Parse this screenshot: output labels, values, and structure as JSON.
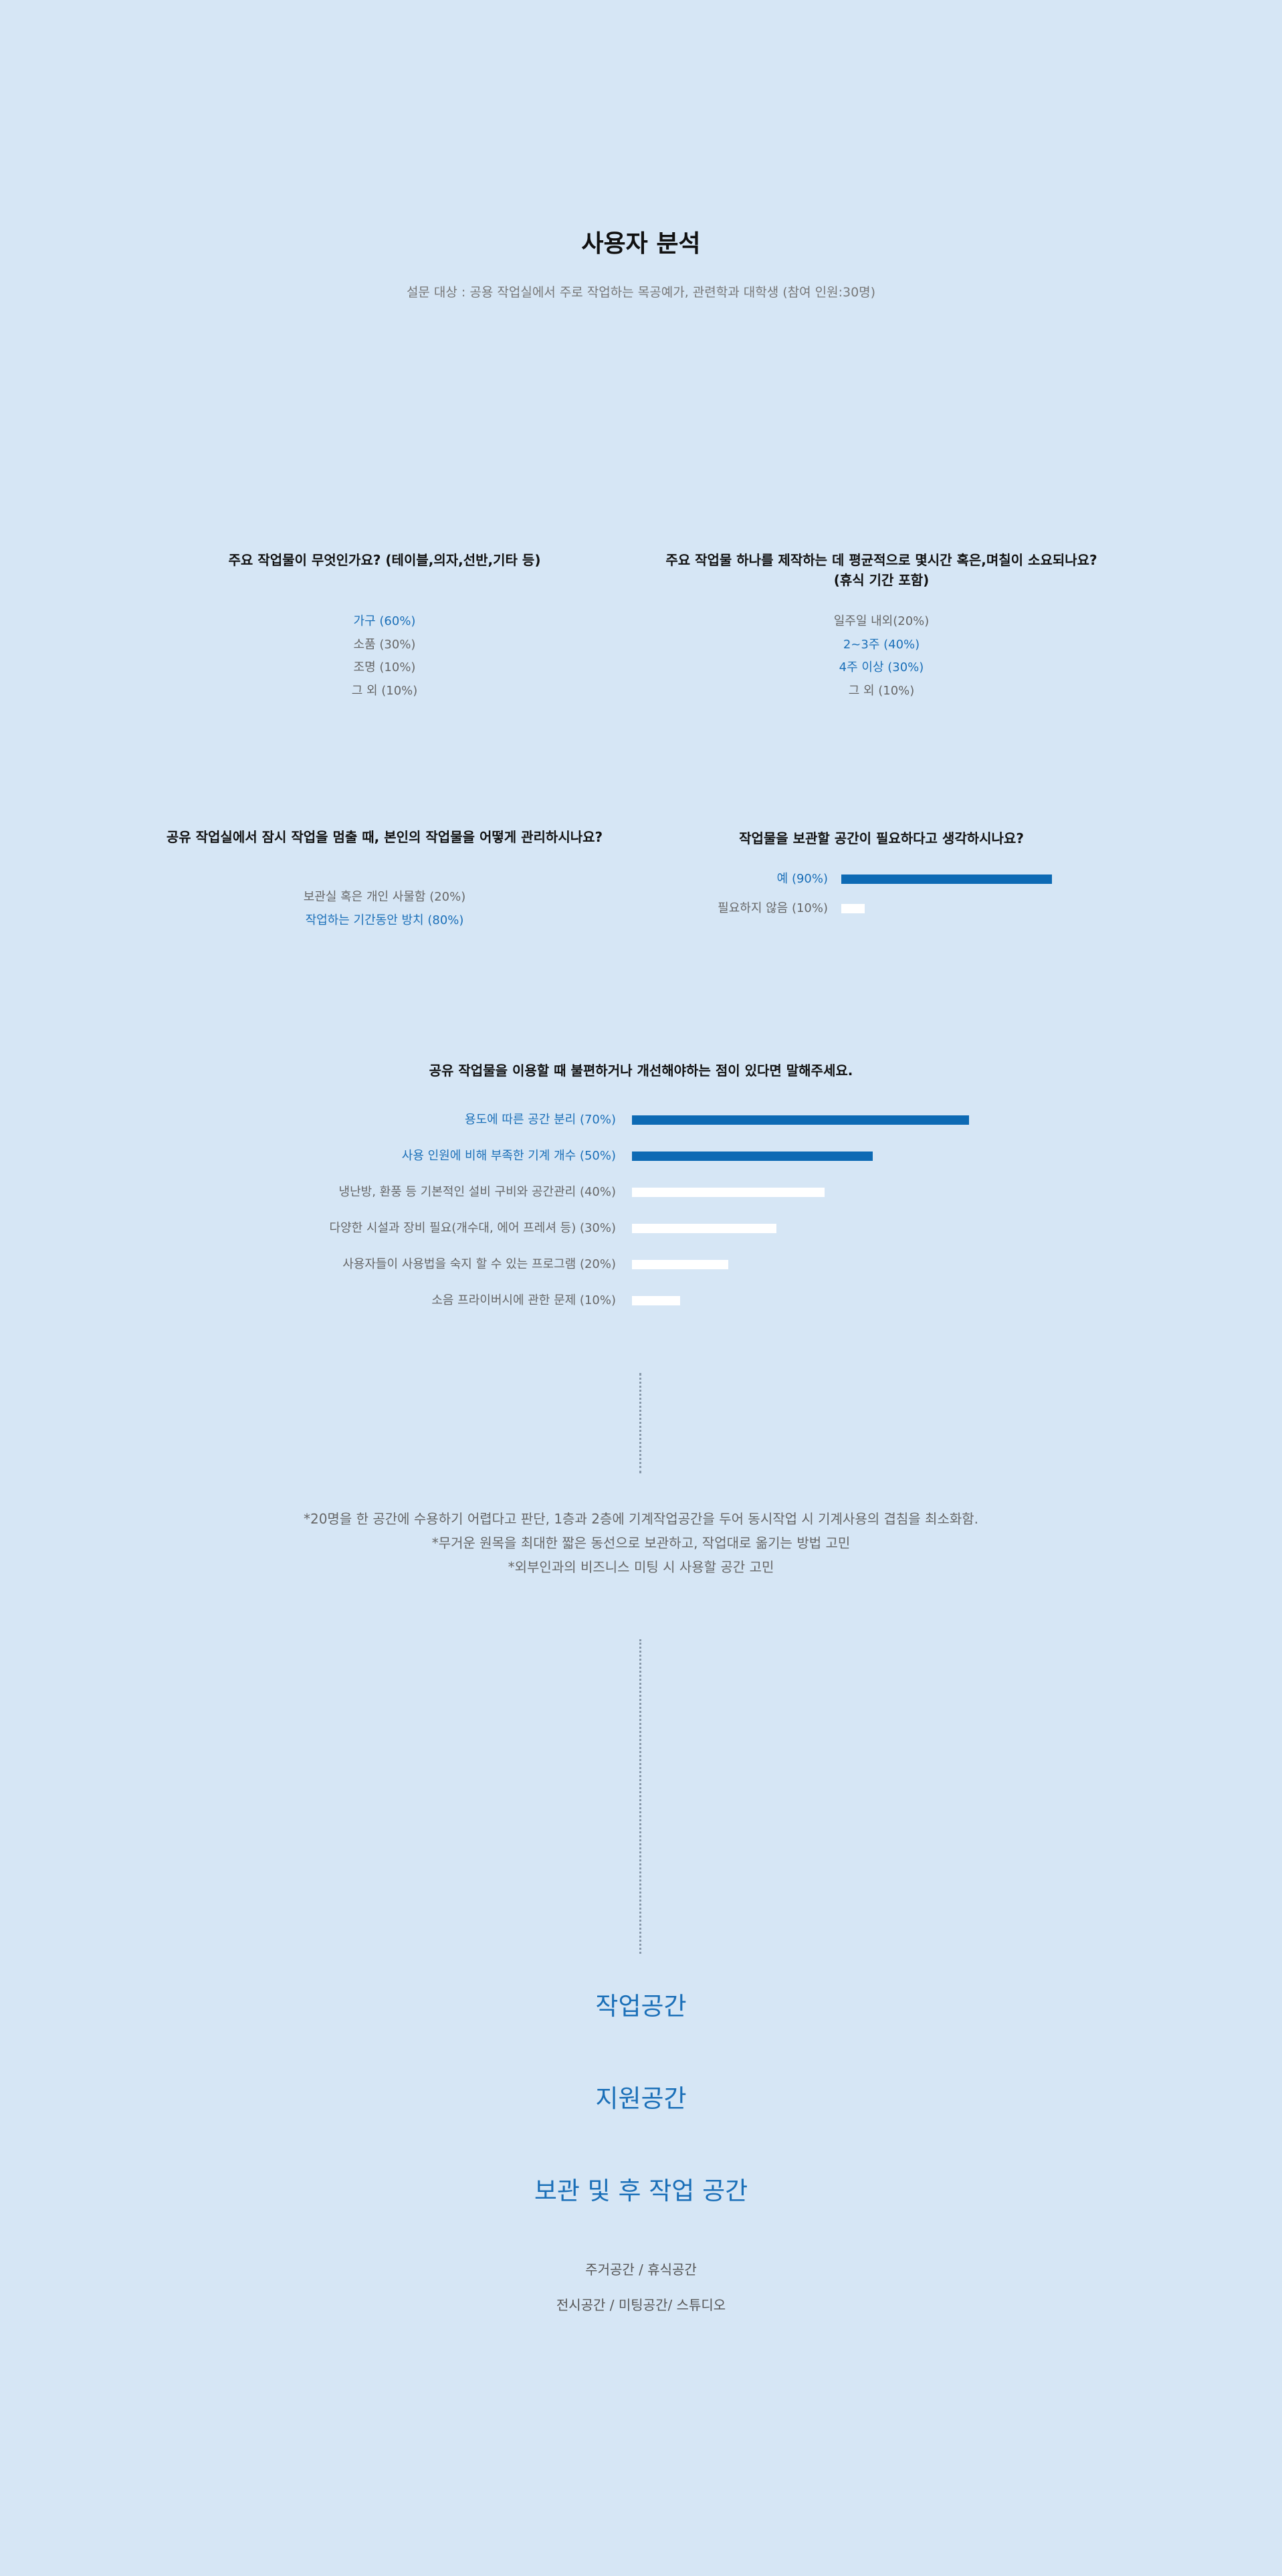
{
  "title": "사용자 분석",
  "subtitle": "설문 대상 : 공용 작업실에서 주로 작업하는 목공예가, 관련학과 대학생  (참여 인원:30명)",
  "colors": {
    "background": "#d6e6f5",
    "accent": "#0d6ab4",
    "accent_text": "#1a6fb8",
    "muted_bar": "#ffffff"
  },
  "q1": {
    "question": "주요 작업물이 무엇인가요? (테이블,의자,선반,기타 등)",
    "options": [
      {
        "label": "가구 (60%)",
        "highlight": true
      },
      {
        "label": "소품 (30%)",
        "highlight": false
      },
      {
        "label": "조명 (10%)",
        "highlight": false
      },
      {
        "label": "그 외 (10%)",
        "highlight": false
      }
    ]
  },
  "q2": {
    "question_line1": "주요 작업물 하나를 제작하는 데 평균적으로 몇시간 혹은,며칠이 소요되나요?",
    "question_line2": "(휴식 기간 포함)",
    "options": [
      {
        "label": "일주일 내외(20%)",
        "highlight": false
      },
      {
        "label": "2~3주 (40%)",
        "highlight": true
      },
      {
        "label": "4주 이상 (30%)",
        "highlight": true
      },
      {
        "label": "그 외 (10%)",
        "highlight": false
      }
    ]
  },
  "q3": {
    "question": "공유 작업실에서 잠시 작업을 멈출 때, 본인의 작업물을 어떻게 관리하시나요?",
    "options": [
      {
        "label": "보관실 혹은 개인 사물함 (20%)",
        "highlight": false
      },
      {
        "label": "작업하는 기간동안 방치 (80%)",
        "highlight": true
      }
    ]
  },
  "q4": {
    "question": "작업물을 보관할 공간이 필요하다고 생각하시나요?"
  },
  "q5": {
    "question": "공유 작업물을 이용할 때 불편하거나 개선해야하는 점이 있다면 말해주세요."
  },
  "chart_data": [
    {
      "type": "bar",
      "orientation": "horizontal",
      "title": "작업물을 보관할 공간이 필요하다고 생각하시나요?",
      "categories": [
        "예 (90%)",
        "필요하지 않음 (10%)"
      ],
      "values": [
        90,
        10
      ],
      "highlight": [
        true,
        false
      ],
      "xlim": [
        0,
        100
      ]
    },
    {
      "type": "bar",
      "orientation": "horizontal",
      "title": "공유 작업물을 이용할 때 불편하거나 개선해야하는 점이 있다면 말해주세요.",
      "categories": [
        "용도에 따른 공간 분리 (70%)",
        "사용 인원에 비해 부족한 기계 개수 (50%)",
        "냉난방, 환풍 등 기본적인 설비 구비와 공간관리 (40%)",
        "다양한 시설과 장비 필요(개수대, 에어 프레셔 등) (30%)",
        "사용자들이 사용법을 숙지 할 수 있는 프로그램 (20%)",
        "소음 프라이버시에 관한 문제 (10%)"
      ],
      "values": [
        70,
        50,
        40,
        30,
        20,
        10
      ],
      "highlight": [
        true,
        true,
        false,
        false,
        false,
        false
      ],
      "xlim": [
        0,
        100
      ]
    }
  ],
  "notes": [
    "*20명을 한 공간에 수용하기 어렵다고 판단, 1층과 2층에 기계작업공간을 두어 동시작업 시 기계사용의 겹침을 최소화함.",
    "*무거운 원목을 최대한 짧은 동선으로 보관하고, 작업대로 옮기는 방법 고민",
    "*외부인과의 비즈니스 미팅 시 사용할 공간 고민"
  ],
  "spaces": {
    "work": "작업공간",
    "support": "지원공간",
    "storage": "보관 및 후 작업 공간",
    "living": "주거공간 / 휴식공간",
    "exhibit": "전시공간 / 미팅공간/ 스튜디오"
  }
}
